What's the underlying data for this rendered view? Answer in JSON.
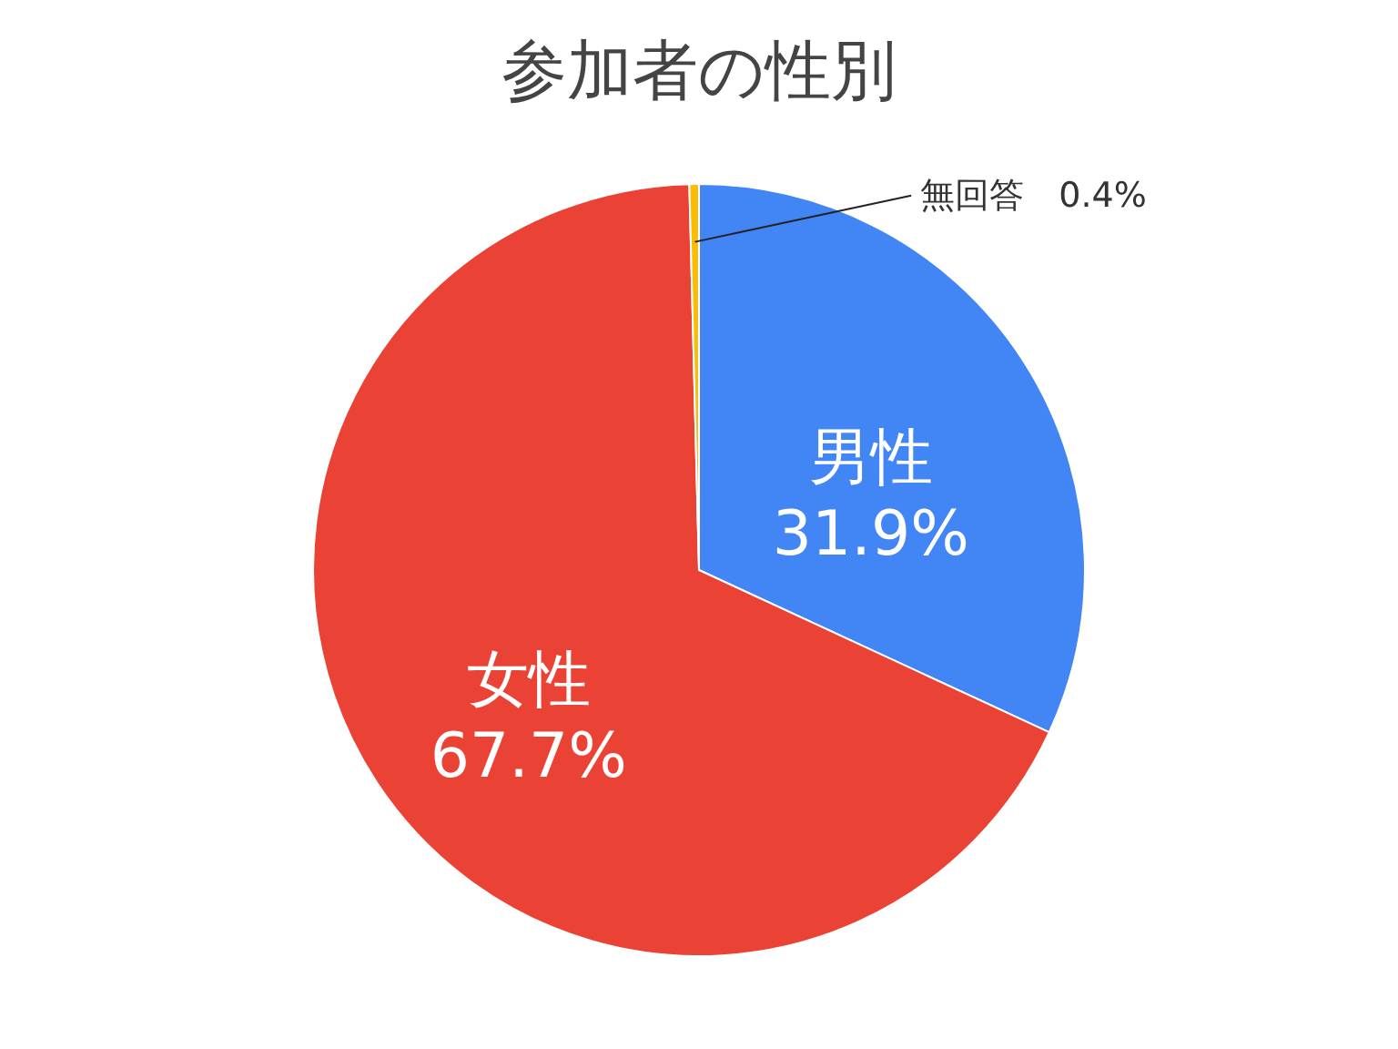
{
  "chart_data": {
    "type": "pie",
    "title": "参加者の性別",
    "categories": [
      "男性",
      "女性",
      "無回答"
    ],
    "values": [
      31.9,
      67.7,
      0.4
    ],
    "colors": [
      "#4285f4",
      "#ea4335",
      "#fbbc04"
    ],
    "value_labels": [
      "31.9%",
      "67.7%",
      "0.4%"
    ],
    "legend": false
  }
}
